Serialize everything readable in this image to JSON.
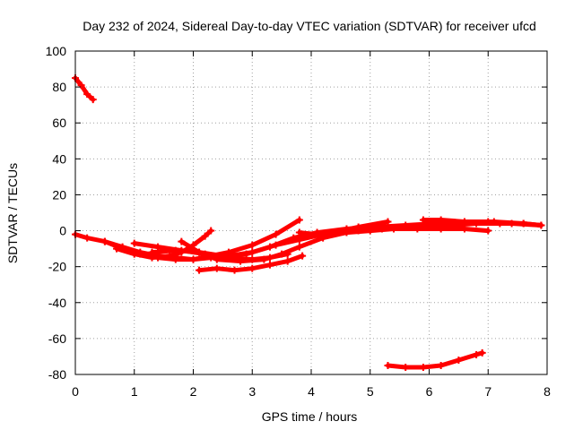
{
  "chart_data": {
    "type": "scatter",
    "title": "Day 232 of 2024, Sidereal Day-to-day VTEC variation (SDTVAR) for receiver ufcd",
    "xlabel": "GPS time / hours",
    "ylabel": "SDTVAR / TECUs",
    "xlim": [
      0,
      8
    ],
    "ylim": [
      -80,
      100
    ],
    "x_ticks": [
      "0",
      "1",
      "2",
      "3",
      "4",
      "5",
      "6",
      "7",
      "8"
    ],
    "y_ticks": [
      "-80",
      "-60",
      "-40",
      "-20",
      "0",
      "20",
      "40",
      "60",
      "80",
      "100"
    ],
    "grid": true,
    "legend": "none",
    "series_color": "#ff0000",
    "series": [
      {
        "x": [
          0.0,
          0.1,
          0.2,
          0.3
        ],
        "y": [
          85,
          81,
          76,
          73
        ]
      },
      {
        "x": [
          0.0,
          0.2,
          0.5,
          0.8,
          1.1,
          1.4,
          1.7,
          2.0,
          2.3,
          2.6,
          3.0,
          3.4,
          3.8,
          4.2,
          4.8,
          5.3
        ],
        "y": [
          -2,
          -4,
          -6,
          -9,
          -12,
          -14,
          -15,
          -16,
          -15,
          -14,
          -12,
          -8,
          -5,
          -2,
          2,
          5
        ]
      },
      {
        "x": [
          0.5,
          0.8,
          1.1,
          1.4,
          1.7,
          2.0,
          2.3,
          2.6,
          3.0,
          3.4,
          3.8
        ],
        "y": [
          -6,
          -10,
          -13,
          -15,
          -16,
          -16,
          -14,
          -12,
          -8,
          -2,
          6
        ]
      },
      {
        "x": [
          0.7,
          1.0,
          1.3,
          1.6,
          1.8,
          2.0,
          2.2,
          2.3
        ],
        "y": [
          -10,
          -13,
          -15,
          -14,
          -12,
          -8,
          -3,
          0
        ]
      },
      {
        "x": [
          1.0,
          1.4,
          1.8,
          2.2,
          2.6,
          3.0,
          3.3,
          3.6
        ],
        "y": [
          -7,
          -9,
          -11,
          -13,
          -15,
          -16,
          -15,
          -13
        ]
      },
      {
        "x": [
          1.3,
          1.7,
          2.1,
          2.5,
          2.9,
          3.3,
          3.7,
          4.1,
          4.6,
          5.1,
          5.6,
          6.1,
          6.6,
          7.1,
          7.6,
          7.9
        ],
        "y": [
          -12,
          -11,
          -12,
          -14,
          -13,
          -9,
          -4,
          -1,
          1,
          2,
          3,
          4,
          5,
          5,
          4,
          3
        ]
      },
      {
        "x": [
          1.8,
          2.1,
          2.4,
          2.8,
          3.2,
          3.5,
          3.8,
          4.2,
          4.6,
          5.0,
          5.4,
          5.8,
          6.2,
          6.6,
          7.0
        ],
        "y": [
          -6,
          -12,
          -16,
          -17,
          -16,
          -13,
          -9,
          -4,
          -1,
          0,
          1,
          1,
          1,
          1,
          0
        ]
      },
      {
        "x": [
          2.1,
          2.4,
          2.7,
          3.0,
          3.3,
          3.6,
          3.85
        ],
        "y": [
          -22,
          -21,
          -22,
          -21,
          -19,
          -17,
          -14
        ]
      },
      {
        "x": [
          3.8,
          4.1,
          4.4,
          4.8,
          5.2,
          5.6,
          6.0,
          6.4,
          6.8,
          7.2,
          7.6,
          7.9
        ],
        "y": [
          -1,
          -2,
          -1,
          0,
          1,
          2,
          3,
          3,
          4,
          4,
          4,
          3
        ]
      },
      {
        "x": [
          5.3,
          5.6,
          5.9,
          6.2,
          6.5,
          6.8,
          6.9
        ],
        "y": [
          -75,
          -76,
          -76,
          -75,
          -72,
          -69,
          -68
        ]
      },
      {
        "x": [
          5.9,
          6.2,
          6.6,
          7.0,
          7.4,
          7.9
        ],
        "y": [
          6,
          6,
          5,
          5,
          4,
          3
        ]
      }
    ]
  }
}
